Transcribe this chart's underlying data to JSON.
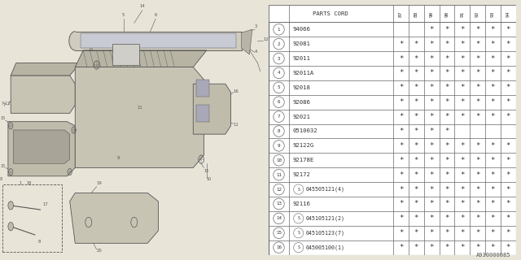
{
  "bg_color": "#e8e5d8",
  "table_bg": "#ffffff",
  "table_border": "#999999",
  "part_number_col": "PARTS CORD",
  "year_cols": [
    "87",
    "88",
    "90",
    "90",
    "91",
    "92",
    "93",
    "94"
  ],
  "rows": [
    {
      "num": 1,
      "part": "94066",
      "S": false,
      "marks": [
        0,
        0,
        1,
        1,
        1,
        1,
        1,
        1
      ]
    },
    {
      "num": 2,
      "part": "92081",
      "S": false,
      "marks": [
        1,
        1,
        1,
        1,
        1,
        1,
        1,
        1
      ]
    },
    {
      "num": 3,
      "part": "92011",
      "S": false,
      "marks": [
        1,
        1,
        1,
        1,
        1,
        1,
        1,
        1
      ]
    },
    {
      "num": 4,
      "part": "92011A",
      "S": false,
      "marks": [
        1,
        1,
        1,
        1,
        1,
        1,
        1,
        1
      ]
    },
    {
      "num": 5,
      "part": "92018",
      "S": false,
      "marks": [
        1,
        1,
        1,
        1,
        1,
        1,
        1,
        1
      ]
    },
    {
      "num": 6,
      "part": "92086",
      "S": false,
      "marks": [
        1,
        1,
        1,
        1,
        1,
        1,
        1,
        1
      ]
    },
    {
      "num": 7,
      "part": "92021",
      "S": false,
      "marks": [
        1,
        1,
        1,
        1,
        1,
        1,
        1,
        1
      ]
    },
    {
      "num": 8,
      "part": "0510032",
      "S": false,
      "marks": [
        1,
        1,
        1,
        1,
        0,
        0,
        0,
        0
      ]
    },
    {
      "num": 9,
      "part": "92122G",
      "S": false,
      "marks": [
        1,
        1,
        1,
        1,
        1,
        1,
        1,
        1
      ]
    },
    {
      "num": 10,
      "part": "92178E",
      "S": false,
      "marks": [
        1,
        1,
        1,
        1,
        1,
        1,
        1,
        1
      ]
    },
    {
      "num": 11,
      "part": "92172",
      "S": false,
      "marks": [
        1,
        1,
        1,
        1,
        1,
        1,
        1,
        1
      ]
    },
    {
      "num": 12,
      "part": "045505121(4)",
      "S": true,
      "marks": [
        1,
        1,
        1,
        1,
        1,
        1,
        1,
        1
      ]
    },
    {
      "num": 13,
      "part": "92116",
      "S": false,
      "marks": [
        1,
        1,
        1,
        1,
        1,
        1,
        1,
        1
      ]
    },
    {
      "num": 14,
      "part": "045105121(2)",
      "S": true,
      "marks": [
        1,
        1,
        1,
        1,
        1,
        1,
        1,
        1
      ]
    },
    {
      "num": 15,
      "part": "045105123(7)",
      "S": true,
      "marks": [
        1,
        1,
        1,
        1,
        1,
        1,
        1,
        1
      ]
    },
    {
      "num": 16,
      "part": "045005100(1)",
      "S": true,
      "marks": [
        1,
        1,
        1,
        1,
        1,
        1,
        1,
        1
      ]
    }
  ],
  "footer": "A930000085",
  "line_color": "#666666",
  "text_color": "#333333"
}
